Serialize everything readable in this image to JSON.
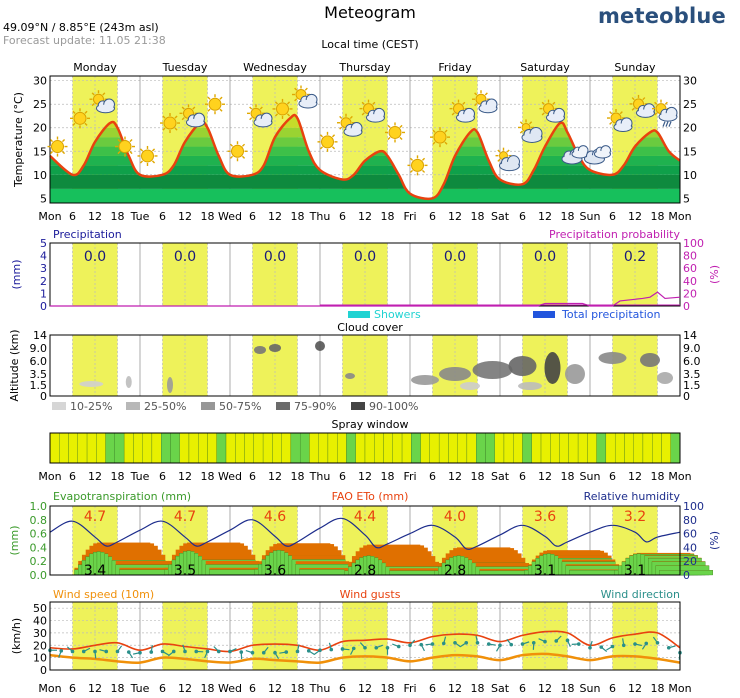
{
  "header": {
    "title": "Meteogram",
    "coordinates": "49.09°N / 8.85°E (243m asl)",
    "forecast_update": "Forecast update: 11.05 21:38",
    "brand": "meteoblue",
    "local_time_label": "Local time (CEST)"
  },
  "colors": {
    "day_band": "#eef25a",
    "temperature_line": "#e8420f",
    "humidity_line": "#1d2d8c",
    "precip_probability": "#c01fb0",
    "showers": "#21d3d2",
    "total_precipitation": "#2255dd",
    "spray_good": "#6ad44a",
    "spray_ok": "#e8f000",
    "evapotranspiration": "#6ad44a",
    "fao_eto": "#e07000",
    "wind_speed": "#f0900a",
    "wind_gusts": "#e8420f",
    "wind_direction": "#2a8f8a",
    "precip_axis": "#1a1a9a",
    "evap_axis": "#3a9a2a",
    "eto_axis": "#e8420f",
    "humidity_axis": "#1d2d8c"
  },
  "chart_data": [
    {
      "type": "line",
      "name": "temperature",
      "ylabel": "Temperature (°C)",
      "ylim": [
        4,
        31
      ],
      "yticks": [
        5,
        10,
        15,
        20,
        25,
        30
      ],
      "days": [
        "Monday",
        "Tuesday",
        "Wednesday",
        "Thursday",
        "Friday",
        "Saturday",
        "Sunday"
      ],
      "x_tick_labels": [
        "Mon",
        "6",
        "12",
        "18",
        "Tue",
        "6",
        "12",
        "18",
        "Wed",
        "6",
        "12",
        "18",
        "Thu",
        "6",
        "12",
        "18",
        "Fri",
        "6",
        "12",
        "18",
        "Sat",
        "6",
        "12",
        "18",
        "Sun",
        "6",
        "12",
        "18",
        "Mon"
      ],
      "x_hours": [
        0,
        6,
        9,
        12,
        16,
        18,
        21,
        24,
        30,
        33,
        36,
        40,
        42,
        45,
        48,
        54,
        57,
        60,
        64,
        66,
        69,
        72,
        78,
        81,
        84,
        88,
        90,
        93,
        96,
        102,
        105,
        108,
        112,
        114,
        117,
        120,
        126,
        129,
        132,
        136,
        138,
        141,
        144,
        150,
        153,
        156,
        160,
        162,
        165,
        168
      ],
      "temperature": [
        14,
        10,
        12,
        17,
        21,
        20,
        14,
        10,
        10,
        12,
        17,
        21,
        20,
        14,
        10,
        10,
        12,
        18,
        22,
        22,
        15,
        11,
        9,
        10,
        13,
        15,
        14,
        10,
        6,
        5,
        8,
        14,
        19,
        19,
        13,
        9,
        8,
        11,
        16,
        21,
        19,
        14,
        11,
        10,
        12,
        16,
        19,
        19,
        15,
        13
      ],
      "weather_icons": [
        {
          "hour": 2,
          "icon": "sun-icon",
          "temp": 16
        },
        {
          "hour": 8,
          "icon": "sun-icon",
          "temp": 22
        },
        {
          "hour": 14,
          "icon": "sun-cloud-icon",
          "temp": 25
        },
        {
          "hour": 20,
          "icon": "sun-icon",
          "temp": 16
        },
        {
          "hour": 26,
          "icon": "sun-icon",
          "temp": 14
        },
        {
          "hour": 32,
          "icon": "sun-icon",
          "temp": 21
        },
        {
          "hour": 38,
          "icon": "sun-cloud-icon",
          "temp": 22
        },
        {
          "hour": 44,
          "icon": "sun-icon",
          "temp": 25
        },
        {
          "hour": 50,
          "icon": "sun-icon",
          "temp": 15
        },
        {
          "hour": 56,
          "icon": "sun-cloud-icon",
          "temp": 22
        },
        {
          "hour": 62,
          "icon": "sun-icon",
          "temp": 24
        },
        {
          "hour": 68,
          "icon": "sun-cloud-icon",
          "temp": 26
        },
        {
          "hour": 74,
          "icon": "sun-icon",
          "temp": 17
        },
        {
          "hour": 80,
          "icon": "sun-cloud-icon",
          "temp": 20
        },
        {
          "hour": 86,
          "icon": "sun-cloud-icon",
          "temp": 23
        },
        {
          "hour": 92,
          "icon": "sun-icon",
          "temp": 19
        },
        {
          "hour": 98,
          "icon": "sun-icon",
          "temp": 12
        },
        {
          "hour": 104,
          "icon": "sun-icon",
          "temp": 18
        },
        {
          "hour": 110,
          "icon": "sun-cloud-icon",
          "temp": 23
        },
        {
          "hour": 116,
          "icon": "sun-cloud-icon",
          "temp": 25
        },
        {
          "hour": 122,
          "icon": "cloud-sun-icon",
          "temp": 13
        },
        {
          "hour": 128,
          "icon": "cloud-sun-icon",
          "temp": 19
        },
        {
          "hour": 134,
          "icon": "sun-cloud-icon",
          "temp": 23
        },
        {
          "hour": 140,
          "icon": "cloud-icon",
          "temp": 14
        },
        {
          "hour": 146,
          "icon": "cloud-icon",
          "temp": 14
        },
        {
          "hour": 152,
          "icon": "sun-cloud-icon",
          "temp": 21
        },
        {
          "hour": 158,
          "icon": "sun-cloud-icon",
          "temp": 24
        },
        {
          "hour": 164,
          "icon": "sun-cloud-rain-icon",
          "temp": 23
        }
      ]
    },
    {
      "type": "bar",
      "name": "precipitation",
      "left_label": "Precipitation",
      "right_label": "Precipitation probability",
      "ylabel": "(mm)",
      "ylabel_right": "(%)",
      "ylim": [
        0,
        5
      ],
      "yticks": [
        0,
        1,
        2,
        3,
        4,
        5
      ],
      "yticks_right": [
        0,
        20,
        40,
        60,
        80,
        100
      ],
      "daily_totals": [
        "0.0",
        "0.0",
        "0.0",
        "0.0",
        "0.0",
        "0.0",
        "0.2"
      ],
      "probability_hours": [
        0,
        130,
        132,
        142,
        144,
        150,
        152,
        158,
        160,
        162,
        164,
        168
      ],
      "probability": [
        0,
        0,
        4,
        4,
        0,
        0,
        8,
        12,
        14,
        22,
        12,
        14
      ],
      "legend": [
        "Showers",
        "Total precipitation"
      ]
    },
    {
      "type": "heatmap",
      "name": "cloud_cover",
      "title": "Cloud cover",
      "ylabel": "Altitude (km)",
      "yticks": [
        "0",
        "1.5",
        "3.5",
        "6.0",
        "9.0",
        "14"
      ],
      "legend": [
        "10-25%",
        "25-50%",
        "50-75%",
        "75-90%",
        "90-100%"
      ]
    },
    {
      "type": "heatmap",
      "name": "spray_window",
      "title": "Spray window",
      "hours_per_cell": 6,
      "cells": [
        "ok",
        "ok",
        "ok",
        "ok",
        "ok",
        "ok",
        "good",
        "good",
        "ok",
        "ok",
        "ok",
        "ok",
        "good",
        "good",
        "ok",
        "ok",
        "ok",
        "ok",
        "good",
        "ok",
        "ok",
        "ok",
        "ok",
        "ok",
        "ok",
        "ok",
        "good",
        "good",
        "ok",
        "ok",
        "ok",
        "ok",
        "good",
        "ok",
        "ok",
        "ok",
        "ok",
        "ok",
        "ok",
        "good",
        "ok",
        "ok",
        "ok",
        "ok",
        "ok",
        "ok",
        "good",
        "good",
        "ok",
        "ok",
        "ok",
        "good",
        "ok",
        "ok",
        "ok",
        "ok",
        "ok",
        "ok",
        "ok",
        "good",
        "ok",
        "ok",
        "ok",
        "ok",
        "ok",
        "ok",
        "ok",
        "good"
      ]
    },
    {
      "type": "bar",
      "name": "evapotranspiration",
      "left_label": "Evapotranspiration (mm)",
      "center_label": "FAO ETo (mm)",
      "right_label": "Relative humidity",
      "ylabel": "(mm)",
      "ylabel_right": "(%)",
      "ylim": [
        0,
        1.0
      ],
      "yticks": [
        "0.0",
        "0.2",
        "0.4",
        "0.6",
        "0.8",
        "1.0"
      ],
      "yticks_right": [
        0,
        20,
        40,
        60,
        80,
        100
      ],
      "daily_evapotranspiration": [
        "3.4",
        "3.5",
        "3.6",
        "2.8",
        "2.8",
        "3.1",
        "3.1"
      ],
      "daily_fao_eto": [
        "4.7",
        "4.7",
        "4.6",
        "4.4",
        "4.0",
        "3.6",
        "3.2"
      ],
      "humidity_hours": [
        0,
        6,
        12,
        15,
        18,
        24,
        30,
        36,
        39,
        42,
        48,
        54,
        60,
        63,
        66,
        72,
        78,
        84,
        87,
        90,
        96,
        102,
        108,
        111,
        114,
        120,
        126,
        132,
        135,
        138,
        144,
        150,
        156,
        159,
        162,
        168
      ],
      "humidity": [
        62,
        78,
        55,
        42,
        48,
        65,
        78,
        55,
        42,
        48,
        65,
        80,
        56,
        42,
        48,
        68,
        82,
        58,
        40,
        45,
        60,
        72,
        55,
        38,
        42,
        58,
        72,
        56,
        42,
        48,
        62,
        72,
        62,
        48,
        55,
        62
      ]
    },
    {
      "type": "line",
      "name": "wind",
      "left_label": "Wind speed (10m)",
      "center_label": "Wind gusts",
      "right_label": "Wind direction",
      "ylabel": "(km/h)",
      "ylim": [
        0,
        55
      ],
      "yticks": [
        0,
        10,
        20,
        30,
        40,
        50
      ],
      "hours": [
        0,
        6,
        12,
        18,
        24,
        30,
        36,
        42,
        48,
        54,
        60,
        66,
        72,
        78,
        84,
        90,
        96,
        102,
        108,
        114,
        120,
        126,
        132,
        138,
        144,
        150,
        156,
        162,
        168
      ],
      "wind_speed": [
        12,
        10,
        9,
        7,
        6,
        10,
        9,
        7,
        6,
        9,
        8,
        7,
        6,
        10,
        11,
        10,
        7,
        10,
        12,
        11,
        8,
        12,
        13,
        11,
        8,
        11,
        11,
        9,
        6
      ],
      "wind_gusts": [
        18,
        17,
        20,
        22,
        16,
        21,
        19,
        17,
        15,
        20,
        21,
        20,
        16,
        23,
        24,
        25,
        22,
        27,
        29,
        28,
        23,
        28,
        31,
        30,
        20,
        26,
        29,
        30,
        18
      ],
      "wind_direction": [
        16,
        15,
        15,
        15,
        14,
        15,
        15,
        15,
        15,
        14,
        14,
        15,
        16,
        17,
        18,
        18,
        20,
        21,
        22,
        22,
        20,
        21,
        23,
        24,
        18,
        19,
        21,
        22,
        14
      ]
    }
  ]
}
